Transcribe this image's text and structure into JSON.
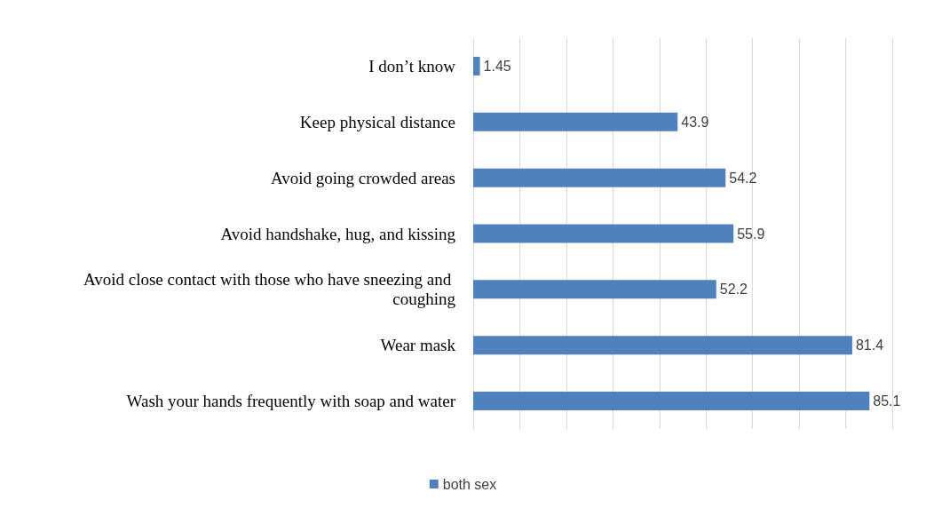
{
  "chart_data": {
    "type": "bar",
    "orientation": "horizontal",
    "categories": [
      "I don’t know",
      "Keep physical distance",
      "Avoid going crowded areas",
      "Avoid handshake, hug, and kissing",
      "Avoid close contact with those who have sneezing and coughing",
      "Wear mask",
      "Wash your hands frequently with soap and water"
    ],
    "series": [
      {
        "name": "both sex",
        "color": "#4f81bd",
        "values": [
          1.45,
          43.9,
          54.2,
          55.9,
          52.2,
          81.4,
          85.1
        ]
      }
    ],
    "xlim": [
      0,
      90
    ],
    "xticks": [
      0,
      10,
      20,
      30,
      40,
      50,
      60,
      70,
      80,
      90
    ],
    "tick_labels": "y",
    "grid": "x",
    "legend": "bottom",
    "data_labels": true
  }
}
